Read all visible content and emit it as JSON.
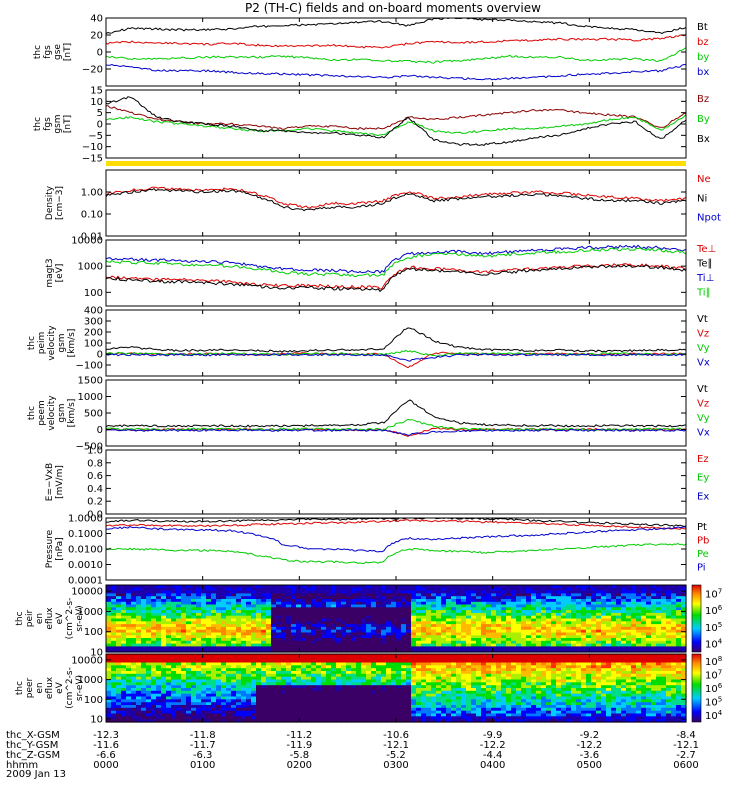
{
  "chart_data": {
    "type": "line",
    "title": "P2 (TH-C) fields and on-board moments overview",
    "date_label": "2009 Jan 13",
    "x_axis": {
      "row_labels": [
        "thc_X-GSM",
        "thc_Y-GSM",
        "thc_Z-GSM",
        "hhmm"
      ],
      "ticks": [
        {
          "x": "-12.3",
          "y": "-11.6",
          "z": "-6.6",
          "hhmm": "0000"
        },
        {
          "x": "-11.8",
          "y": "-11.7",
          "z": "-6.3",
          "hhmm": "0100"
        },
        {
          "x": "-11.2",
          "y": "-11.9",
          "z": "-5.8",
          "hhmm": "0200"
        },
        {
          "x": "-10.6",
          "y": "-12.1",
          "z": "-5.2",
          "hhmm": "0300"
        },
        {
          "x": "-9.9",
          "y": "-12.2",
          "z": "-4.4",
          "hhmm": "0400"
        },
        {
          "x": "-9.2",
          "y": "-12.2",
          "z": "-3.6",
          "hhmm": "0500"
        },
        {
          "x": "-8.4",
          "y": "-12.1",
          "z": "-2.7",
          "hhmm": "0600"
        }
      ]
    },
    "panels": [
      {
        "id": "fgs_gse",
        "ylabel": [
          "thc",
          "fgs",
          "gse",
          "[nT]"
        ],
        "scale": "linear",
        "ylim": [
          -40,
          40
        ],
        "ticks": [
          "−20",
          "0",
          "20",
          "40"
        ],
        "series": [
          {
            "name": "Bt",
            "color": "#000000",
            "values": [
              22,
              28,
              27,
              26,
              26,
              27,
              30,
              31,
              32,
              33,
              35,
              36,
              31,
              39,
              40,
              38,
              37,
              36,
              34,
              30,
              28,
              26,
              22,
              29
            ]
          },
          {
            "name": "bz",
            "color": "#dd0000",
            "values": [
              10,
              12,
              11,
              10,
              9,
              10,
              8,
              7,
              7,
              8,
              6,
              5,
              10,
              12,
              11,
              12,
              13,
              14,
              15,
              15,
              15,
              14,
              16,
              20
            ]
          },
          {
            "name": "by",
            "color": "#00cc00",
            "values": [
              -5,
              -8,
              -8,
              -7,
              -6,
              -6,
              -6,
              -5,
              -7,
              -9,
              -9,
              -10,
              -11,
              -12,
              -10,
              -8,
              -5,
              -6,
              -6,
              -10,
              -9,
              -8,
              -11,
              5
            ]
          },
          {
            "name": "bx",
            "color": "#0000cc",
            "values": [
              -15,
              -18,
              -22,
              -22,
              -22,
              -24,
              -25,
              -26,
              -27,
              -28,
              -29,
              -30,
              -28,
              -30,
              -31,
              -32,
              -31,
              -30,
              -28,
              -26,
              -25,
              -23,
              -22,
              -15
            ]
          }
        ]
      },
      {
        "id": "fgs_gsm",
        "ylabel": [
          "thc",
          "fgs",
          "gsm",
          "[nT]"
        ],
        "scale": "linear",
        "ylim": [
          -15,
          15
        ],
        "ticks": [
          "−15",
          "−10",
          "−5",
          "0",
          "5",
          "10",
          "15"
        ],
        "series": [
          {
            "name": "Bz",
            "color": "#8b0000",
            "values": [
              8,
              5,
              2,
              1,
              0,
              0,
              -1,
              -2,
              -1,
              -1,
              -2,
              -2,
              3,
              2,
              3,
              4,
              5,
              6,
              6,
              5,
              4,
              3,
              -2,
              5
            ]
          },
          {
            "name": "By",
            "color": "#00cc00",
            "values": [
              2,
              3,
              1,
              0,
              -1,
              -2,
              -3,
              -3,
              -2,
              -3,
              -4,
              -5,
              1,
              -3,
              -4,
              -3,
              -2,
              -2,
              -1,
              0,
              2,
              3,
              -3,
              4
            ]
          },
          {
            "name": "Bx",
            "color": "#000000",
            "values": [
              9,
              12,
              3,
              1,
              0,
              -1,
              -3,
              -3,
              -4,
              -4,
              -5,
              -6,
              3,
              -7,
              -9,
              -9,
              -8,
              -6,
              -5,
              -2,
              0,
              1,
              -7,
              2
            ]
          }
        ]
      },
      {
        "id": "density",
        "ylabel": [
          "Density",
          "[cm−3]"
        ],
        "scale": "log",
        "ylim": [
          0.01,
          10
        ],
        "ticks": [
          "0.01",
          "0.10",
          "1.00"
        ],
        "series": [
          {
            "name": "Ne",
            "color": "#dd0000",
            "values": [
              0.8,
              1.2,
              1.5,
              1.3,
              1.2,
              1.4,
              0.8,
              0.3,
              0.2,
              0.3,
              0.3,
              0.4,
              1.0,
              0.5,
              0.6,
              0.8,
              0.9,
              1.0,
              0.9,
              0.7,
              0.6,
              0.5,
              0.4,
              0.5
            ]
          },
          {
            "name": "Ni",
            "color": "#000000",
            "values": [
              0.7,
              1.0,
              1.3,
              1.1,
              1.0,
              1.2,
              0.6,
              0.2,
              0.15,
              0.2,
              0.2,
              0.3,
              0.8,
              0.4,
              0.5,
              0.6,
              0.7,
              0.8,
              0.7,
              0.5,
              0.4,
              0.4,
              0.3,
              0.4
            ]
          },
          {
            "name": "Npot",
            "color": "#0000cc",
            "values": []
          }
        ]
      },
      {
        "id": "temperature",
        "ylabel": [
          "magt3",
          "[eV]"
        ],
        "scale": "log",
        "ylim": [
          30,
          10000
        ],
        "ticks": [
          "100",
          "1000",
          "10000"
        ],
        "series": [
          {
            "name": "Te⊥",
            "color": "#dd0000",
            "values": [
              400,
              350,
              300,
              300,
              280,
              250,
              200,
              180,
              180,
              170,
              160,
              150,
              900,
              800,
              700,
              600,
              700,
              800,
              900,
              1000,
              1100,
              1100,
              1000,
              800
            ]
          },
          {
            "name": "Te∥",
            "color": "#000000",
            "values": [
              350,
              300,
              260,
              250,
              230,
              210,
              170,
              150,
              150,
              140,
              130,
              120,
              800,
              700,
              600,
              500,
              600,
              700,
              800,
              900,
              1000,
              1000,
              900,
              700
            ]
          },
          {
            "name": "Ti⊥",
            "color": "#0000cc",
            "values": [
              2000,
              1800,
              1700,
              1600,
              1500,
              1400,
              1000,
              800,
              700,
              700,
              600,
              600,
              3000,
              3500,
              3600,
              3000,
              3500,
              4000,
              4500,
              5000,
              5500,
              5600,
              5000,
              4000
            ]
          },
          {
            "name": "Ti∥",
            "color": "#00cc00",
            "values": [
              1500,
              1400,
              1300,
              1200,
              1100,
              1000,
              800,
              600,
              500,
              500,
              450,
              450,
              2200,
              2800,
              2900,
              2400,
              2800,
              3200,
              3600,
              4000,
              4400,
              4500,
              4000,
              3200
            ]
          }
        ]
      },
      {
        "id": "peim_velocity",
        "ylabel": [
          "thc",
          "peim",
          "velocity",
          "gsm",
          "[km/s]"
        ],
        "scale": "linear",
        "ylim": [
          -200,
          400
        ],
        "ticks": [
          "−100",
          "0",
          "100",
          "200",
          "300",
          "400"
        ],
        "series": [
          {
            "name": "Vt",
            "color": "#000000",
            "values": [
              50,
              60,
              40,
              30,
              35,
              40,
              30,
              25,
              30,
              35,
              40,
              45,
              250,
              120,
              60,
              40,
              35,
              30,
              35,
              30,
              25,
              30,
              35,
              40
            ]
          },
          {
            "name": "Vz",
            "color": "#dd0000",
            "values": [
              0,
              5,
              -5,
              0,
              5,
              0,
              -5,
              0,
              5,
              0,
              -5,
              0,
              -120,
              10,
              5,
              0,
              -5,
              0,
              5,
              0,
              -5,
              0,
              5,
              0
            ]
          },
          {
            "name": "Vy",
            "color": "#00cc00",
            "values": [
              10,
              5,
              0,
              -5,
              0,
              5,
              0,
              -5,
              0,
              5,
              0,
              -5,
              30,
              -20,
              10,
              0,
              5,
              0,
              -5,
              0,
              5,
              0,
              -5,
              0
            ]
          },
          {
            "name": "Vx",
            "color": "#0000cc",
            "values": [
              -10,
              -5,
              -10,
              -5,
              -10,
              -5,
              -10,
              -5,
              -10,
              -5,
              -10,
              -5,
              -60,
              -30,
              -10,
              -5,
              -10,
              -5,
              -10,
              -5,
              -10,
              -5,
              -10,
              -5
            ]
          }
        ]
      },
      {
        "id": "peem_velocity",
        "ylabel": [
          "thc",
          "peem",
          "velocity",
          "gsm",
          "[km/s]"
        ],
        "scale": "linear",
        "ylim": [
          -500,
          1500
        ],
        "ticks": [
          "−500",
          "0",
          "500",
          "1000",
          "1500"
        ],
        "series": [
          {
            "name": "Vt",
            "color": "#000000",
            "values": [
              100,
              120,
              110,
              100,
              120,
              110,
              100,
              110,
              120,
              130,
              150,
              200,
              900,
              400,
              200,
              150,
              130,
              120,
              110,
              100,
              120,
              110,
              100,
              120
            ]
          },
          {
            "name": "Vz",
            "color": "#dd0000",
            "values": [
              0,
              -20,
              10,
              0,
              -10,
              20,
              0,
              -10,
              10,
              0,
              -20,
              0,
              -200,
              50,
              0,
              -10,
              10,
              0,
              -10,
              10,
              0,
              -10,
              10,
              0
            ]
          },
          {
            "name": "Vy",
            "color": "#00cc00",
            "values": [
              20,
              10,
              0,
              10,
              20,
              10,
              0,
              10,
              20,
              10,
              0,
              10,
              300,
              100,
              20,
              10,
              0,
              10,
              20,
              10,
              0,
              10,
              20,
              10
            ]
          },
          {
            "name": "Vx",
            "color": "#0000cc",
            "values": [
              -20,
              -30,
              -20,
              -30,
              -20,
              -30,
              -20,
              -30,
              -20,
              -30,
              -20,
              -30,
              -150,
              -80,
              -40,
              -30,
              -20,
              -30,
              -20,
              -30,
              -20,
              -30,
              -20,
              -30
            ]
          }
        ]
      },
      {
        "id": "efield",
        "ylabel": [
          "E=−VxB",
          "[mV/m]"
        ],
        "scale": "linear",
        "ylim": [
          0.0,
          1.0
        ],
        "ticks": [
          "0.0",
          "0.2",
          "0.4",
          "0.6",
          "0.8",
          "1.0"
        ],
        "series": [
          {
            "name": "Ez",
            "color": "#dd0000",
            "values": []
          },
          {
            "name": "Ey",
            "color": "#00cc00",
            "values": []
          },
          {
            "name": "Ex",
            "color": "#0000cc",
            "values": []
          }
        ]
      },
      {
        "id": "pressure",
        "ylabel": [
          "Pressure",
          "[nPa]"
        ],
        "scale": "log",
        "ylim": [
          0.0001,
          1.0
        ],
        "ticks": [
          "0.0001",
          "0.0010",
          "0.0100",
          "0.1000",
          "1.0000"
        ],
        "series": [
          {
            "name": "Pt",
            "color": "#000000",
            "values": [
              0.6,
              0.7,
              0.65,
              0.6,
              0.6,
              0.65,
              0.7,
              0.75,
              0.8,
              0.8,
              0.85,
              0.9,
              1.0,
              1.0,
              0.95,
              0.9,
              0.8,
              0.7,
              0.6,
              0.5,
              0.45,
              0.4,
              0.35,
              0.3
            ]
          },
          {
            "name": "Pb",
            "color": "#dd0000",
            "values": [
              0.3,
              0.35,
              0.33,
              0.32,
              0.31,
              0.33,
              0.38,
              0.42,
              0.46,
              0.5,
              0.55,
              0.6,
              0.7,
              0.65,
              0.6,
              0.55,
              0.5,
              0.45,
              0.4,
              0.35,
              0.3,
              0.25,
              0.22,
              0.2
            ]
          },
          {
            "name": "Pe",
            "color": "#00cc00",
            "values": [
              0.01,
              0.01,
              0.009,
              0.008,
              0.008,
              0.007,
              0.004,
              0.002,
              0.0015,
              0.0015,
              0.0013,
              0.0013,
              0.01,
              0.008,
              0.007,
              0.006,
              0.007,
              0.008,
              0.01,
              0.012,
              0.015,
              0.018,
              0.02,
              0.02
            ]
          },
          {
            "name": "Pi",
            "color": "#0000cc",
            "values": [
              0.2,
              0.25,
              0.2,
              0.18,
              0.17,
              0.15,
              0.08,
              0.02,
              0.01,
              0.01,
              0.008,
              0.007,
              0.05,
              0.04,
              0.05,
              0.06,
              0.07,
              0.08,
              0.1,
              0.12,
              0.15,
              0.18,
              0.2,
              0.25
            ]
          }
        ]
      },
      {
        "id": "peir_spectrogram",
        "type": "heatmap",
        "ylabel": [
          "thc",
          "peir",
          "en",
          "eflux",
          "eV",
          "(cm^2-s-",
          "sr-eV)"
        ],
        "scale": "log",
        "ylim": [
          10,
          20000
        ],
        "ticks": [
          "10",
          "100",
          "1000",
          "10000"
        ],
        "colorbar_ticks": [
          "10^4",
          "10^5",
          "10^6",
          "10^7"
        ]
      },
      {
        "id": "peer_spectrogram",
        "type": "heatmap",
        "ylabel": [
          "thc",
          "peer",
          "en",
          "eflux",
          "eV",
          "(cm^2-s-",
          "sr-eV)"
        ],
        "scale": "log",
        "ylim": [
          7,
          20000
        ],
        "ticks": [
          "10",
          "100",
          "1000",
          "10000"
        ],
        "colorbar_ticks": [
          "10^4",
          "10^5",
          "10^6",
          "10^7",
          "10^8"
        ]
      }
    ]
  }
}
